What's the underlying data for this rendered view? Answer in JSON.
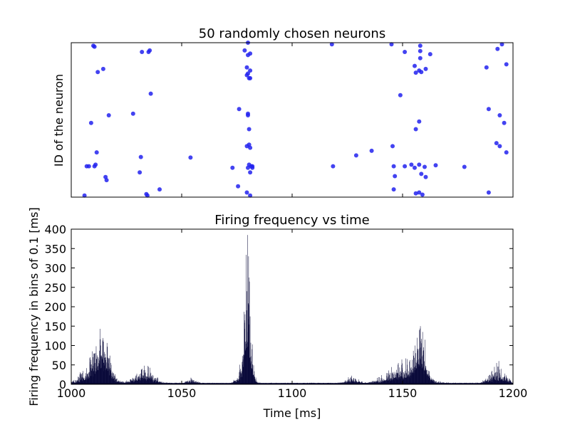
{
  "chart_data": [
    {
      "type": "scatter",
      "title": "50 randomly chosen neurons",
      "xlabel": "",
      "ylabel": "ID of the neuron",
      "xlim": [
        1000,
        1200
      ],
      "ylim": [
        0,
        50
      ],
      "x_ticks_shown": false,
      "y_ticks_shown": false,
      "marker_color": "#2222ee",
      "points": [
        [
          1006,
          0.5
        ],
        [
          1010,
          49
        ],
        [
          1010.5,
          48.7
        ],
        [
          1012,
          40.5
        ],
        [
          1014.5,
          41.5
        ],
        [
          1017,
          26.5
        ],
        [
          1009,
          24
        ],
        [
          1011.5,
          14.5
        ],
        [
          1007,
          10
        ],
        [
          1008,
          10
        ],
        [
          1011,
          10.5
        ],
        [
          1010.5,
          10
        ],
        [
          1015.5,
          6.5
        ],
        [
          1016,
          5.5
        ],
        [
          1032,
          47
        ],
        [
          1035,
          47
        ],
        [
          1035.5,
          47.5
        ],
        [
          1036,
          33.5
        ],
        [
          1028,
          27
        ],
        [
          1031.5,
          13
        ],
        [
          1031,
          8
        ],
        [
          1034,
          1
        ],
        [
          1034.5,
          0.5
        ],
        [
          1040,
          2.5
        ],
        [
          1054,
          12.8
        ],
        [
          1073,
          9.5
        ],
        [
          1075.5,
          3.5
        ],
        [
          1076,
          28.5
        ],
        [
          1078.5,
          47.5
        ],
        [
          1080,
          46
        ],
        [
          1081,
          46.5
        ],
        [
          1080,
          50
        ],
        [
          1079.5,
          42
        ],
        [
          1081,
          41
        ],
        [
          1080,
          40
        ],
        [
          1080.5,
          38.5
        ],
        [
          1081,
          38.5
        ],
        [
          1079.5,
          39.5
        ],
        [
          1080,
          27
        ],
        [
          1080,
          26.5
        ],
        [
          1080.5,
          22
        ],
        [
          1080.5,
          17
        ],
        [
          1079.5,
          16.5
        ],
        [
          1081,
          16
        ],
        [
          1080.5,
          10.5
        ],
        [
          1081.5,
          10
        ],
        [
          1080,
          9.5
        ],
        [
          1082,
          10
        ],
        [
          1081,
          8
        ],
        [
          1082,
          9.5
        ],
        [
          1079.5,
          1.5
        ],
        [
          1081,
          0.5
        ],
        [
          1118,
          49.5
        ],
        [
          1118.5,
          10
        ],
        [
          1129,
          13.5
        ],
        [
          1136,
          15
        ],
        [
          1145,
          49.5
        ],
        [
          1151,
          47
        ],
        [
          1158,
          49
        ],
        [
          1158,
          47.3
        ],
        [
          1158,
          45
        ],
        [
          1162.5,
          46.3
        ],
        [
          1155.5,
          42.5
        ],
        [
          1158.5,
          40.5
        ],
        [
          1156,
          40.3
        ],
        [
          1157.5,
          41
        ],
        [
          1160.5,
          41.5
        ],
        [
          1149,
          33
        ],
        [
          1157.5,
          24.5
        ],
        [
          1156,
          22
        ],
        [
          1145.5,
          16.5
        ],
        [
          1151,
          10
        ],
        [
          1146,
          10
        ],
        [
          1154,
          10.5
        ],
        [
          1155.5,
          9.5
        ],
        [
          1157.5,
          10.5
        ],
        [
          1160,
          9.8
        ],
        [
          1158.5,
          7.5
        ],
        [
          1160.5,
          6.5
        ],
        [
          1146.5,
          6.8
        ],
        [
          1146,
          2.5
        ],
        [
          1156,
          1.2
        ],
        [
          1157.5,
          1.5
        ],
        [
          1159,
          0.8
        ],
        [
          1165,
          10.3
        ],
        [
          1178,
          9.8
        ],
        [
          1195,
          49.5
        ],
        [
          1193,
          48
        ],
        [
          1188,
          42
        ],
        [
          1197,
          43
        ],
        [
          1189,
          28.5
        ],
        [
          1194,
          26.5
        ],
        [
          1196,
          24
        ],
        [
          1192.5,
          17.5
        ],
        [
          1194,
          16.5
        ],
        [
          1197,
          14.5
        ],
        [
          1189,
          1.5
        ]
      ]
    },
    {
      "type": "bar",
      "title": "Firing frequency vs time",
      "xlabel": "Time [ms]",
      "ylabel": "Firing frequency in bins of 0.1 [ms]",
      "xlim": [
        1000,
        1200
      ],
      "ylim": [
        0,
        400
      ],
      "x_ticks": [
        1000,
        1050,
        1100,
        1150,
        1200
      ],
      "y_ticks": [
        0,
        50,
        100,
        150,
        200,
        250,
        300,
        350,
        400
      ],
      "bin_width_ms": 0.1,
      "bar_color": "#000033",
      "baseline_noise": 4,
      "bursts": [
        {
          "center": 1011,
          "width": 5,
          "height": 55
        },
        {
          "center": 1015,
          "width": 2.5,
          "height": 70
        },
        {
          "center": 1033,
          "width": 4,
          "height": 35
        },
        {
          "center": 1054.5,
          "width": 2,
          "height": 10
        },
        {
          "center": 1080,
          "width": 1.3,
          "height": 260
        },
        {
          "center": 1078.5,
          "width": 2.5,
          "height": 45
        },
        {
          "center": 1127,
          "width": 2.5,
          "height": 15
        },
        {
          "center": 1151,
          "width": 7,
          "height": 45
        },
        {
          "center": 1158,
          "width": 2.2,
          "height": 95
        },
        {
          "center": 1193,
          "width": 3.5,
          "height": 30
        }
      ],
      "peaks": [
        [
          1008.5,
          70
        ],
        [
          1009.5,
          85
        ],
        [
          1010.5,
          80
        ],
        [
          1011.5,
          65
        ],
        [
          1013.5,
          75
        ],
        [
          1014.5,
          110
        ],
        [
          1015.5,
          50
        ],
        [
          1016.5,
          40
        ],
        [
          1032,
          40
        ],
        [
          1033,
          48
        ],
        [
          1035,
          45
        ],
        [
          1036,
          30
        ],
        [
          1079.5,
          240
        ],
        [
          1079.8,
          385
        ],
        [
          1080.2,
          330
        ],
        [
          1080.6,
          265
        ],
        [
          1080.9,
          175
        ],
        [
          1078.8,
          110
        ],
        [
          1148,
          55
        ],
        [
          1152,
          65
        ],
        [
          1155.5,
          100
        ],
        [
          1156.5,
          120
        ],
        [
          1157.5,
          140
        ],
        [
          1158,
          150
        ],
        [
          1159,
          135
        ],
        [
          1160,
          115
        ],
        [
          1191.5,
          45
        ],
        [
          1192.5,
          55
        ],
        [
          1193.5,
          60
        ],
        [
          1194.5,
          40
        ]
      ]
    }
  ]
}
